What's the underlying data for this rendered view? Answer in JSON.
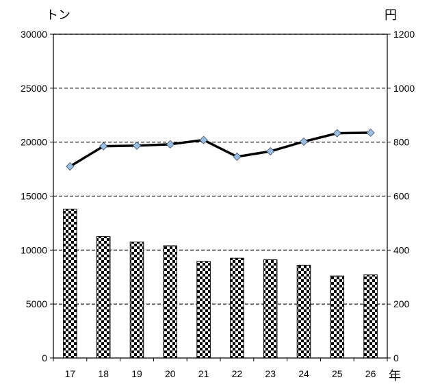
{
  "chart_data": {
    "type": "bar",
    "categories": [
      "17",
      "18",
      "19",
      "20",
      "21",
      "22",
      "23",
      "24",
      "25",
      "26"
    ],
    "series": [
      {
        "type": "bar",
        "axis": "left",
        "pattern": "checkerboard",
        "values": [
          13800,
          11250,
          10750,
          10400,
          8950,
          9250,
          9100,
          8600,
          7600,
          7700
        ]
      },
      {
        "type": "line",
        "axis": "right",
        "marker": "diamond",
        "marker_color": "#9bbde0",
        "line_color": "#000000",
        "values": [
          710,
          785,
          787,
          792,
          808,
          746,
          766,
          802,
          833,
          835
        ]
      }
    ],
    "left_axis": {
      "unit": "トン",
      "range": [
        0,
        30000
      ],
      "ticks": [
        "0",
        "5000",
        "10000",
        "15000",
        "20000",
        "25000",
        "30000"
      ]
    },
    "right_axis": {
      "unit": "円",
      "range": [
        0,
        1200
      ],
      "ticks": [
        "0",
        "200",
        "400",
        "600",
        "800",
        "1000",
        "1200"
      ]
    },
    "x_axis": {
      "unit": "年"
    },
    "gridlines": "dashed-horizontal"
  }
}
